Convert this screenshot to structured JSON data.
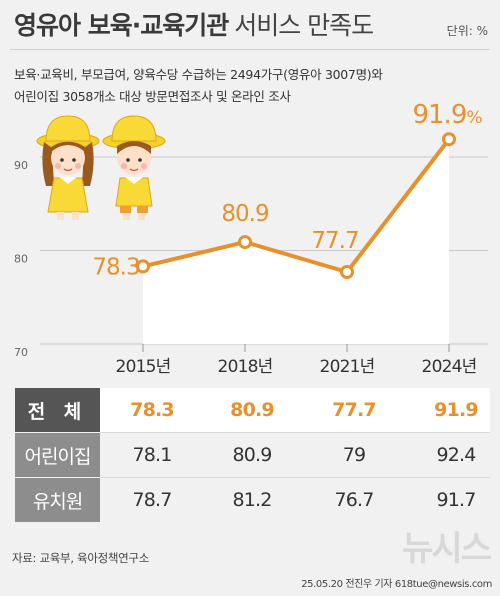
{
  "header": {
    "title_bold": "영유아 보육·교육기관",
    "title_light": "서비스 만족도",
    "unit": "단위: %"
  },
  "description": {
    "line1": "보육·교육비, 부모급여, 양육수당 수급하는 2494가구(영유아 3007명)와",
    "line2": "어린이집 3058개소 대상 방문면접조사 및 온라인 조사"
  },
  "colors": {
    "accent": "#e8902c",
    "header_dark": "#555555",
    "header_gray": "#8d8d8d",
    "grid": "#c9c9c9"
  },
  "chart_data": {
    "type": "line",
    "x": [
      "2015년",
      "2018년",
      "2021년",
      "2024년"
    ],
    "series": [
      {
        "values": [
          78.3,
          80.9,
          77.7,
          91.9
        ]
      }
    ],
    "data_labels": [
      "78.3",
      "80.9",
      "77.7",
      "91.9"
    ],
    "last_label_suffix": "%",
    "ylim": [
      70,
      95
    ],
    "yticks": [
      70,
      80,
      90
    ],
    "ytick_labels": [
      "70",
      "80",
      "90"
    ],
    "grid": true,
    "area_fill": true,
    "illustration": "two-children-in-yellow-hats"
  },
  "table": {
    "rows": [
      {
        "label": "전 체",
        "values": [
          "78.3",
          "80.9",
          "77.7",
          "91.9"
        ]
      },
      {
        "label": "어린이집",
        "values": [
          "78.1",
          "80.9",
          "79",
          "92.4"
        ]
      },
      {
        "label": "유치원",
        "values": [
          "78.7",
          "81.2",
          "76.7",
          "91.7"
        ]
      }
    ]
  },
  "footer": {
    "source": "자료: 교육부, 육아정책연구소",
    "credit": "25.05.20 전진우 기자 618tue@newsis.com",
    "logo": "뉴시스"
  }
}
